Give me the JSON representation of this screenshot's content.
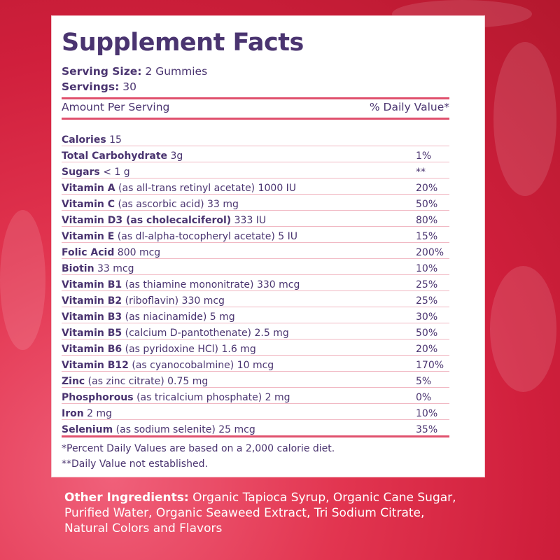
{
  "title": "Supplement Facts",
  "serving_size": {
    "label": "Serving Size:",
    "value": "2 Gummies"
  },
  "servings": {
    "label": "Servings:",
    "value": "30"
  },
  "header": {
    "amount": "Amount Per Serving",
    "dv": "% Daily Value*"
  },
  "rows": [
    {
      "name": "Calories",
      "detail": "15",
      "dv": ""
    },
    {
      "name": "Total Carbohydrate",
      "detail": "3g",
      "dv": "1%"
    },
    {
      "name": "Sugars",
      "detail": "< 1 g",
      "dv": "**"
    },
    {
      "name": "Vitamin A",
      "detail": "(as all-trans retinyl acetate) 1000 IU",
      "dv": "20%"
    },
    {
      "name": "Vitamin C",
      "detail": "(as ascorbic acid) 33 mg",
      "dv": "50%"
    },
    {
      "name": "Vitamin D3 (as cholecalciferol)",
      "detail": "333 IU",
      "dv": "80%"
    },
    {
      "name": "Vitamin E",
      "detail": "(as dl-alpha-tocopheryl acetate) 5 IU",
      "dv": "15%"
    },
    {
      "name": "Folic Acid",
      "detail": "800 mcg",
      "dv": "200%"
    },
    {
      "name": "Biotin",
      "detail": "33 mcg",
      "dv": "10%"
    },
    {
      "name": "Vitamin B1",
      "detail": "(as thiamine mononitrate) 330 mcg",
      "dv": "25%"
    },
    {
      "name": "Vitamin B2",
      "detail": "(riboflavin) 330 mcg",
      "dv": "25%"
    },
    {
      "name": "Vitamin B3",
      "detail": "(as niacinamide) 5 mg",
      "dv": "30%"
    },
    {
      "name": "Vitamin B5",
      "detail": "(calcium D-pantothenate) 2.5 mg",
      "dv": "50%"
    },
    {
      "name": "Vitamin B6",
      "detail": "(as pyridoxine HCl) 1.6 mg",
      "dv": "20%"
    },
    {
      "name": "Vitamin B12",
      "detail": "(as cyanocobalmine) 10 mcg",
      "dv": "170%"
    },
    {
      "name": "Zinc",
      "detail": "(as zinc citrate) 0.75 mg",
      "dv": "5%"
    },
    {
      "name": "Phosphorous",
      "detail": "(as tricalcium phosphate) 2 mg",
      "dv": "0%"
    },
    {
      "name": "Iron",
      "detail": "2 mg",
      "dv": "10%"
    },
    {
      "name": "Selenium",
      "detail": "(as sodium selenite) 25 mcg",
      "dv": "35%"
    }
  ],
  "footnotes": [
    "*Percent Daily Values are based on a 2,000 calorie diet.",
    "**Daily Value not established."
  ],
  "other_ingredients": {
    "label": "Other Ingredients:",
    "text": "Organic Tapioca Syrup, Organic Cane Sugar, Purified Water, Organic Seaweed Extract, Tri Sodium Citrate, Natural Colors and Flavors"
  },
  "colors": {
    "title": "#4a3470",
    "rule": "#e0506d",
    "background": "#d01f3c"
  }
}
